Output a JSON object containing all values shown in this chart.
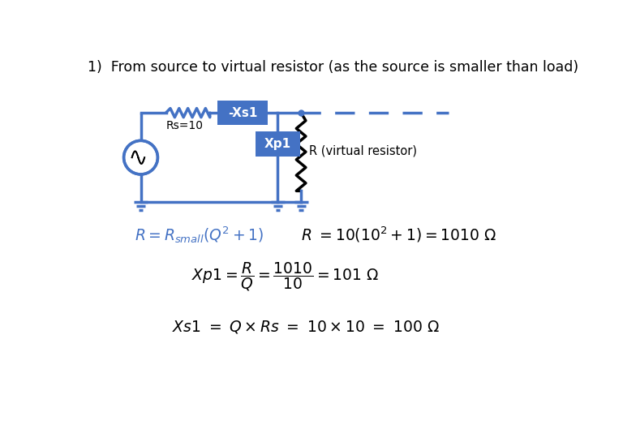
{
  "title": "1)  From source to virtual resistor (as the source is smaller than load)",
  "title_fontsize": 12.5,
  "title_color": "#000000",
  "circuit_color": "#4472C4",
  "box_color": "#4472C4",
  "box_text_color": "#ffffff",
  "resistor_color": "#000000",
  "formula1_color": "#4472C4",
  "formula_black": "#000000",
  "bg_color": "#ffffff",
  "label_Rs": "Rs=10",
  "label_xs1": "-Xs1",
  "label_xp1": "Xp1",
  "label_R": "R (virtual resistor)"
}
